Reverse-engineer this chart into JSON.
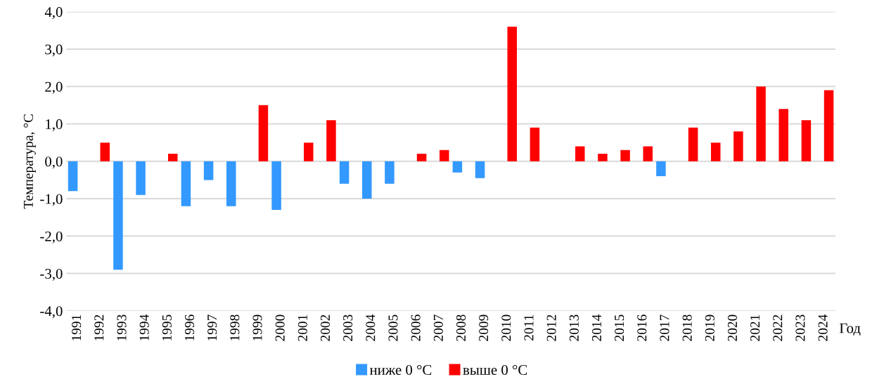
{
  "chart_data": {
    "type": "bar",
    "ylabel": "Температура, °C",
    "xlabel": "Год",
    "categories": [
      "1991",
      "1992",
      "1993",
      "1994",
      "1995",
      "1996",
      "1997",
      "1998",
      "1999",
      "2000",
      "2001",
      "2002",
      "2003",
      "2004",
      "2005",
      "2006",
      "2007",
      "2008",
      "2009",
      "2010",
      "2011",
      "2012",
      "2013",
      "2014",
      "2015",
      "2016",
      "2017",
      "2018",
      "2019",
      "2020",
      "2021",
      "2022",
      "2023",
      "2024"
    ],
    "series": [
      {
        "name": "ниже 0 °C",
        "color": "#3399ff",
        "values": [
          -0.8,
          null,
          -2.9,
          -0.9,
          null,
          -1.2,
          -0.5,
          -1.2,
          null,
          -1.3,
          null,
          null,
          -0.6,
          -1.0,
          -0.6,
          null,
          null,
          -0.3,
          -0.45,
          null,
          null,
          null,
          null,
          null,
          null,
          null,
          -0.4,
          null,
          null,
          null,
          null,
          null,
          null,
          null
        ]
      },
      {
        "name": "выше 0 °C",
        "color": "#ff0000",
        "values": [
          null,
          0.5,
          null,
          null,
          0.2,
          null,
          null,
          null,
          1.5,
          null,
          0.5,
          1.1,
          null,
          null,
          null,
          0.2,
          0.3,
          null,
          null,
          3.6,
          0.9,
          null,
          0.4,
          0.2,
          0.3,
          0.4,
          null,
          0.9,
          0.5,
          0.8,
          2.0,
          1.4,
          1.1,
          1.9
        ]
      }
    ],
    "ylim": [
      -4,
      4
    ],
    "yticks": [
      {
        "value": -4,
        "label": "-4,0"
      },
      {
        "value": -3,
        "label": "-3,0"
      },
      {
        "value": -2,
        "label": "-2,0"
      },
      {
        "value": -1,
        "label": "-1,0"
      },
      {
        "value": 0,
        "label": "0,0"
      },
      {
        "value": 1,
        "label": "1,0"
      },
      {
        "value": 2,
        "label": "2,0"
      },
      {
        "value": 3,
        "label": "3,0"
      },
      {
        "value": 4,
        "label": "4,0"
      }
    ],
    "grid": "y",
    "legend": "bottom"
  }
}
